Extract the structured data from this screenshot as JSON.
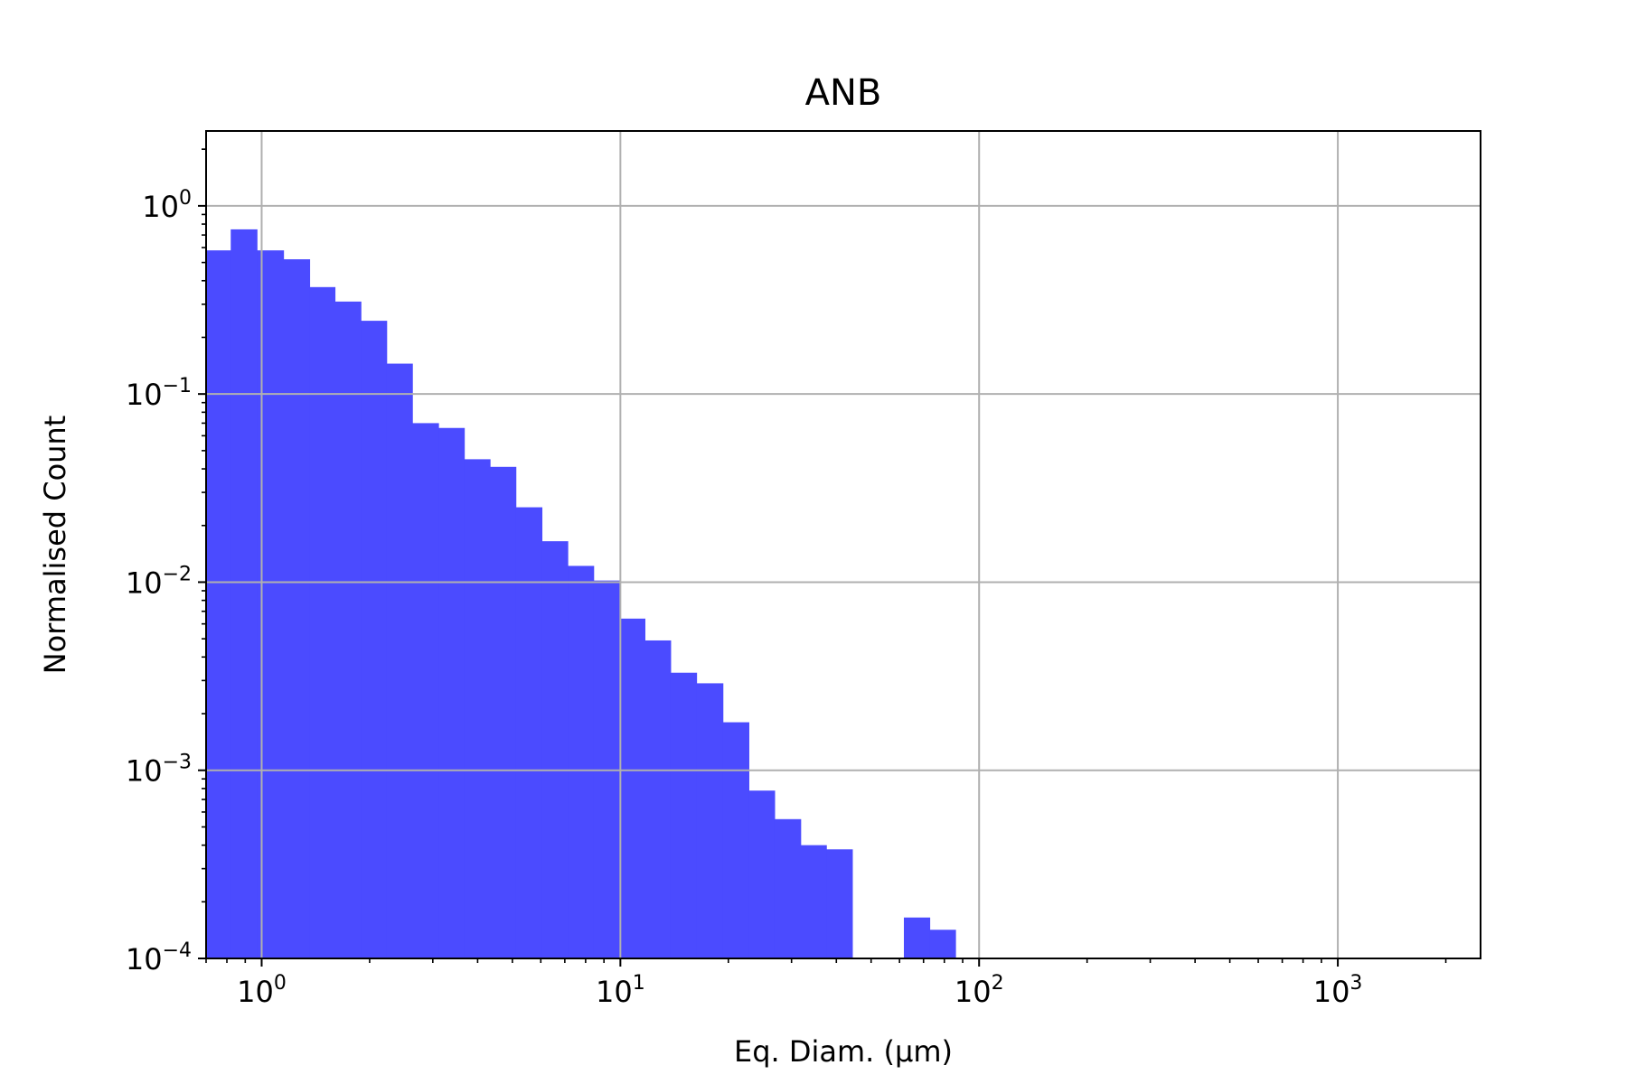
{
  "chart_data": {
    "type": "bar",
    "title": "ANB",
    "xlabel": "Eq. Diam. (µm)",
    "ylabel": "Normalised Count",
    "x_scale": "log",
    "y_scale": "log",
    "xlim": [
      0.7,
      2500
    ],
    "ylim": [
      0.0001,
      2.5
    ],
    "grid": true,
    "bar_color": "#4b4bff",
    "x_ticks": [
      {
        "value": 1,
        "base": "10",
        "exp": "0"
      },
      {
        "value": 10,
        "base": "10",
        "exp": "1"
      },
      {
        "value": 100,
        "base": "10",
        "exp": "2"
      },
      {
        "value": 1000,
        "base": "10",
        "exp": "3"
      }
    ],
    "y_ticks": [
      {
        "value": 1,
        "base": "10",
        "exp": "0"
      },
      {
        "value": 0.1,
        "base": "10",
        "exp": "−1"
      },
      {
        "value": 0.01,
        "base": "10",
        "exp": "−2"
      },
      {
        "value": 0.001,
        "base": "10",
        "exp": "−3"
      },
      {
        "value": 0.0001,
        "base": "10",
        "exp": "−4"
      }
    ],
    "bins": [
      {
        "x0": 0.7,
        "x1": 0.82,
        "value": 0.58
      },
      {
        "x0": 0.82,
        "x1": 0.97,
        "value": 0.75
      },
      {
        "x0": 0.97,
        "x1": 1.15,
        "value": 0.58
      },
      {
        "x0": 1.15,
        "x1": 1.36,
        "value": 0.52
      },
      {
        "x0": 1.36,
        "x1": 1.6,
        "value": 0.37
      },
      {
        "x0": 1.6,
        "x1": 1.89,
        "value": 0.31
      },
      {
        "x0": 1.89,
        "x1": 2.23,
        "value": 0.245
      },
      {
        "x0": 2.23,
        "x1": 2.63,
        "value": 0.145
      },
      {
        "x0": 2.63,
        "x1": 3.11,
        "value": 0.07
      },
      {
        "x0": 3.11,
        "x1": 3.67,
        "value": 0.066
      },
      {
        "x0": 3.67,
        "x1": 4.33,
        "value": 0.045
      },
      {
        "x0": 4.33,
        "x1": 5.11,
        "value": 0.041
      },
      {
        "x0": 5.11,
        "x1": 6.04,
        "value": 0.025
      },
      {
        "x0": 6.04,
        "x1": 7.13,
        "value": 0.0165
      },
      {
        "x0": 7.13,
        "x1": 8.42,
        "value": 0.0122
      },
      {
        "x0": 8.42,
        "x1": 9.94,
        "value": 0.0102
      },
      {
        "x0": 9.94,
        "x1": 11.7,
        "value": 0.0064
      },
      {
        "x0": 11.7,
        "x1": 13.8,
        "value": 0.0049
      },
      {
        "x0": 13.8,
        "x1": 16.3,
        "value": 0.0033
      },
      {
        "x0": 16.3,
        "x1": 19.3,
        "value": 0.0029
      },
      {
        "x0": 19.3,
        "x1": 22.8,
        "value": 0.0018
      },
      {
        "x0": 22.8,
        "x1": 26.9,
        "value": 0.00078
      },
      {
        "x0": 26.9,
        "x1": 31.8,
        "value": 0.00055
      },
      {
        "x0": 31.8,
        "x1": 37.5,
        "value": 0.0004
      },
      {
        "x0": 37.5,
        "x1": 44.3,
        "value": 0.00038
      },
      {
        "x0": 61.7,
        "x1": 72.8,
        "value": 0.000165
      },
      {
        "x0": 72.8,
        "x1": 85.9,
        "value": 0.000142
      }
    ]
  }
}
